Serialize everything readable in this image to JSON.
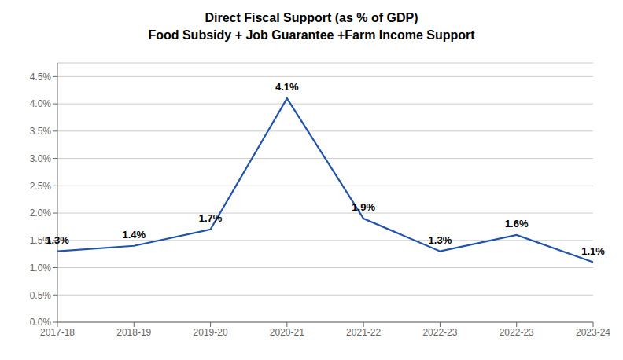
{
  "chart_data": {
    "type": "line",
    "title": "Direct Fiscal Support (as % of GDP)",
    "subtitle": "Food Subsidy + Job Guarantee +Farm Income Support",
    "categories": [
      "2017-18",
      "2018-19",
      "2019-20",
      "2020-21",
      "2021-22",
      "2022-23",
      "2022-23",
      "2023-24"
    ],
    "values": [
      1.3,
      1.4,
      1.7,
      4.1,
      1.9,
      1.3,
      1.6,
      1.1
    ],
    "value_labels": [
      "1.3%",
      "1.4%",
      "1.7%",
      "4.1%",
      "1.9%",
      "1.3%",
      "1.6%",
      "1.1%"
    ],
    "data_labels": true,
    "color": "#2255AA",
    "ylim": [
      0.0,
      4.75
    ],
    "yticks": [
      {
        "value": 0.0,
        "label": "0.0%"
      },
      {
        "value": 0.5,
        "label": "0.5%"
      },
      {
        "value": 1.0,
        "label": "1.0%"
      },
      {
        "value": 1.5,
        "label": "1.5%"
      },
      {
        "value": 2.0,
        "label": "2.0%"
      },
      {
        "value": 2.5,
        "label": "2.5%"
      },
      {
        "value": 3.0,
        "label": "3.0%"
      },
      {
        "value": 3.5,
        "label": "3.5%"
      },
      {
        "value": 4.0,
        "label": "4.0%"
      },
      {
        "value": 4.5,
        "label": "4.5%"
      }
    ],
    "grid": true
  }
}
